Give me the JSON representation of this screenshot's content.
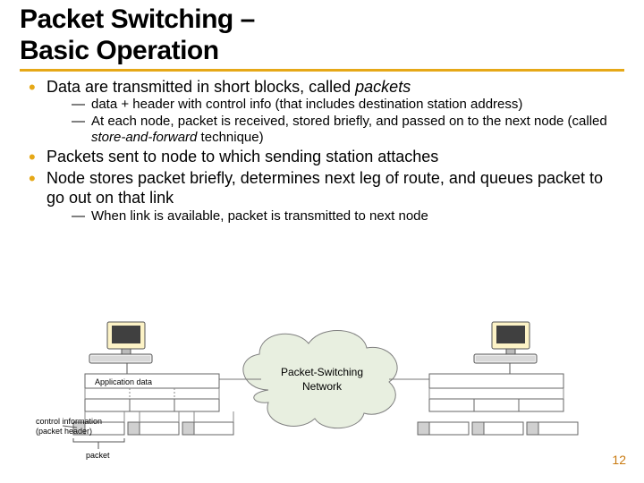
{
  "title_line1": "Packet Switching –",
  "title_line2": "Basic Operation",
  "bullets": [
    {
      "text_pre": "Data are transmitted in short blocks, called ",
      "text_ital": "packets",
      "subs": [
        "data + header with control info (that includes destination station address)",
        "At each node, packet is received, stored briefly, and passed on to the next node (called store-and-forward  technique)"
      ]
    },
    {
      "text": "Packets sent to node to which sending station attaches"
    },
    {
      "text": "Node stores packet briefly, determines next leg of route, and queues packet to go out on that link",
      "subs": [
        "When link is available, packet is transmitted to next node"
      ]
    }
  ],
  "sub_b1_ital_phrase": "store-and-forward",
  "diagram": {
    "labels": {
      "app_data": "Application data",
      "control_info_l1": "control information",
      "control_info_l2": "(packet header)",
      "packet": "packet",
      "cloud": "Packet-Switching\nNetwork"
    },
    "colors": {
      "cloud_fill": "#e8efe0",
      "stroke": "#808080",
      "text": "#000000",
      "monitor_fill": "#fdf3c6",
      "monitor_stroke": "#555555",
      "box_stroke": "#666666",
      "data_fill": "#ffffff",
      "header_fill": "#d0d0d0",
      "accent": "#e6a817"
    }
  },
  "page_number": "12"
}
